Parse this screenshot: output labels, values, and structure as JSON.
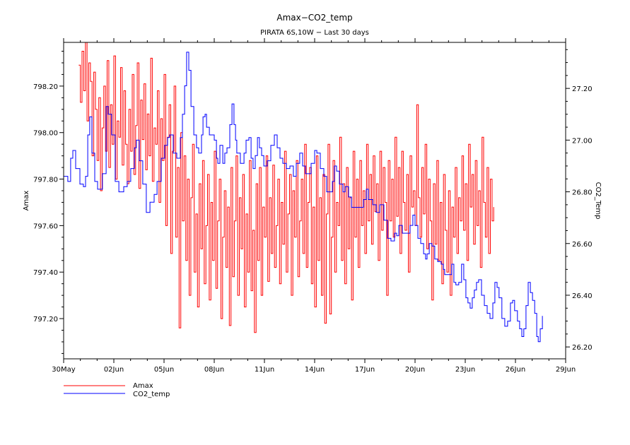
{
  "chart_data": {
    "type": "line",
    "title": "Amax−CO2_temp",
    "subtitle": "PIRATA 6S,10W − Last 30 days",
    "xlabel": "",
    "ylabel_left": "Amax",
    "ylabel_right": "CO2_Temp",
    "x_start_label": "30May",
    "xlim_days": [
      0,
      30
    ],
    "x_ticks": [
      {
        "day": 0,
        "label": "30May"
      },
      {
        "day": 3,
        "label": "02Jun"
      },
      {
        "day": 6,
        "label": "05Jun"
      },
      {
        "day": 9,
        "label": "08Jun"
      },
      {
        "day": 12,
        "label": "11Jun"
      },
      {
        "day": 15,
        "label": "14Jun"
      },
      {
        "day": 18,
        "label": "17Jun"
      },
      {
        "day": 21,
        "label": "20Jun"
      },
      {
        "day": 24,
        "label": "23Jun"
      },
      {
        "day": 27,
        "label": "26Jun"
      },
      {
        "day": 30,
        "label": "29Jun"
      }
    ],
    "ylim_left": [
      797.027,
      798.388
    ],
    "y_ticks_left": [
      {
        "value": 797.2,
        "label": "797.20"
      },
      {
        "value": 797.4,
        "label": "797.40"
      },
      {
        "value": 797.6,
        "label": "797.60"
      },
      {
        "value": 797.8,
        "label": "797.80"
      },
      {
        "value": 798.0,
        "label": "798.00"
      },
      {
        "value": 798.2,
        "label": "798.20"
      }
    ],
    "ylim_right": [
      26.154,
      27.378
    ],
    "y_ticks_right": [
      {
        "value": 26.2,
        "label": "26.20"
      },
      {
        "value": 26.4,
        "label": "26.40"
      },
      {
        "value": 26.6,
        "label": "26.60"
      },
      {
        "value": 26.8,
        "label": "26.80"
      },
      {
        "value": 27.0,
        "label": "27.00"
      },
      {
        "value": 27.2,
        "label": "27.20"
      }
    ],
    "grid": false,
    "legend_position": "bottom-left",
    "series": [
      {
        "name": "Amax",
        "axis": "left",
        "color": "#ff0000",
        "x_start_day": 0.9,
        "x_step_day": 0.1,
        "values": [
          798.29,
          798.13,
          798.35,
          798.18,
          798.39,
          798.05,
          798.3,
          798.22,
          797.9,
          798.26,
          798.1,
          797.88,
          798.15,
          797.75,
          798.02,
          798.2,
          797.92,
          798.31,
          797.85,
          798.12,
          797.95,
          798.33,
          797.8,
          798.05,
          797.98,
          798.28,
          797.86,
          798.18,
          797.95,
          797.78,
          798.1,
          797.92,
          798.25,
          797.82,
          798.03,
          798.3,
          797.76,
          798.14,
          797.97,
          798.21,
          797.84,
          798.08,
          797.9,
          798.32,
          797.79,
          798.02,
          797.95,
          798.18,
          797.7,
          798.06,
          797.88,
          798.25,
          797.6,
          797.98,
          798.12,
          797.48,
          797.92,
          798.2,
          797.55,
          797.85,
          797.16,
          798.0,
          797.62,
          797.9,
          797.45,
          797.8,
          797.3,
          797.72,
          797.95,
          797.4,
          797.65,
          797.25,
          797.78,
          797.5,
          797.88,
          797.35,
          797.6,
          797.82,
          797.28,
          797.7,
          797.45,
          797.92,
          797.33,
          797.62,
          797.8,
          797.2,
          797.55,
          797.75,
          797.42,
          797.68,
          797.17,
          797.85,
          797.38,
          797.62,
          797.9,
          797.3,
          797.72,
          797.5,
          797.82,
          797.25,
          797.65,
          797.4,
          797.88,
          797.32,
          797.58,
          797.14,
          797.78,
          797.45,
          797.85,
          797.3,
          797.68,
          797.55,
          797.9,
          797.36,
          797.72,
          797.48,
          797.86,
          797.42,
          797.6,
          797.8,
          797.35,
          797.7,
          797.52,
          797.92,
          797.4,
          797.65,
          797.82,
          797.3,
          797.75,
          797.55,
          797.88,
          797.38,
          797.62,
          797.8,
          797.48,
          797.95,
          797.42,
          797.7,
          797.85,
          797.35,
          797.68,
          797.25,
          797.9,
          797.45,
          797.72,
          797.3,
          797.82,
          797.18,
          797.65,
          797.95,
          797.22,
          797.55,
          797.88,
          797.4,
          797.7,
          797.6,
          797.98,
          797.45,
          797.78,
          797.35,
          797.85,
          797.5,
          797.72,
          797.28,
          797.92,
          797.55,
          797.8,
          797.42,
          797.88,
          797.6,
          797.75,
          797.48,
          797.95,
          797.62,
          797.82,
          797.52,
          797.9,
          797.66,
          797.78,
          797.45,
          797.92,
          797.58,
          797.85,
          797.7,
          797.3,
          797.88,
          797.62,
          797.8,
          797.55,
          797.98,
          797.64,
          797.85,
          797.48,
          797.92,
          797.7,
          797.58,
          797.82,
          797.4,
          797.9,
          797.68,
          797.75,
          797.6,
          798.12,
          797.72,
          797.55,
          797.85,
          797.65,
          797.95,
          797.5,
          797.8,
          797.62,
          797.28,
          797.78,
          797.52,
          797.88,
          797.45,
          797.7,
          797.35,
          797.82,
          797.58,
          797.4,
          797.75,
          797.3,
          797.68,
          797.55,
          797.85,
          797.48,
          797.72,
          797.62,
          797.9,
          797.58,
          797.78,
          797.45,
          797.95,
          797.68,
          797.82,
          797.52,
          797.88,
          797.6,
          797.75,
          797.42,
          797.98,
          797.7,
          797.55,
          797.85,
          797.48,
          797.8,
          797.62,
          797.68
        ]
      },
      {
        "name": "CO2_temp",
        "axis": "right",
        "color": "#0000ff",
        "points": [
          [
            0.0,
            26.86
          ],
          [
            0.25,
            26.84
          ],
          [
            0.42,
            26.93
          ],
          [
            0.55,
            26.96
          ],
          [
            0.72,
            26.89
          ],
          [
            0.97,
            26.83
          ],
          [
            1.18,
            26.82
          ],
          [
            1.31,
            26.86
          ],
          [
            1.44,
            27.02
          ],
          [
            1.56,
            27.09
          ],
          [
            1.69,
            26.95
          ],
          [
            1.86,
            26.84
          ],
          [
            2.03,
            26.81
          ],
          [
            2.32,
            26.87
          ],
          [
            2.54,
            27.13
          ],
          [
            2.66,
            27.1
          ],
          [
            2.87,
            27.02
          ],
          [
            3.08,
            26.84
          ],
          [
            3.3,
            26.8
          ],
          [
            3.59,
            26.82
          ],
          [
            3.8,
            26.84
          ],
          [
            4.01,
            26.89
          ],
          [
            4.23,
            26.97
          ],
          [
            4.35,
            27.0
          ],
          [
            4.52,
            26.92
          ],
          [
            4.73,
            26.83
          ],
          [
            4.94,
            26.72
          ],
          [
            5.16,
            26.76
          ],
          [
            5.41,
            26.79
          ],
          [
            5.58,
            26.84
          ],
          [
            5.83,
            26.93
          ],
          [
            6.04,
            26.98
          ],
          [
            6.21,
            27.01
          ],
          [
            6.34,
            27.02
          ],
          [
            6.55,
            26.95
          ],
          [
            6.76,
            26.93
          ],
          [
            6.97,
            27.01
          ],
          [
            7.1,
            27.1
          ],
          [
            7.23,
            27.21
          ],
          [
            7.35,
            27.34
          ],
          [
            7.48,
            27.27
          ],
          [
            7.61,
            27.13
          ],
          [
            7.78,
            27.02
          ],
          [
            7.94,
            26.97
          ],
          [
            8.07,
            26.95
          ],
          [
            8.24,
            27.02
          ],
          [
            8.33,
            27.09
          ],
          [
            8.45,
            27.1
          ],
          [
            8.54,
            27.05
          ],
          [
            8.71,
            27.02
          ],
          [
            8.87,
            27.02
          ],
          [
            9.0,
            27.0
          ],
          [
            9.13,
            26.93
          ],
          [
            9.21,
            26.91
          ],
          [
            9.34,
            26.98
          ],
          [
            9.51,
            26.91
          ],
          [
            9.63,
            26.95
          ],
          [
            9.76,
            26.97
          ],
          [
            9.93,
            27.06
          ],
          [
            10.06,
            27.14
          ],
          [
            10.18,
            27.06
          ],
          [
            10.27,
            27.0
          ],
          [
            10.35,
            26.95
          ],
          [
            10.56,
            26.91
          ],
          [
            10.78,
            26.95
          ],
          [
            10.9,
            27.0
          ],
          [
            11.07,
            27.01
          ],
          [
            11.2,
            26.93
          ],
          [
            11.32,
            26.89
          ],
          [
            11.45,
            26.94
          ],
          [
            11.58,
            27.01
          ],
          [
            11.7,
            26.97
          ],
          [
            11.83,
            26.94
          ],
          [
            11.96,
            26.9
          ],
          [
            12.17,
            26.92
          ],
          [
            12.38,
            26.98
          ],
          [
            12.59,
            27.02
          ],
          [
            12.76,
            26.97
          ],
          [
            12.93,
            26.93
          ],
          [
            13.1,
            26.91
          ],
          [
            13.31,
            26.89
          ],
          [
            13.52,
            26.9
          ],
          [
            13.73,
            26.86
          ],
          [
            13.9,
            26.91
          ],
          [
            14.11,
            26.95
          ],
          [
            14.28,
            26.9
          ],
          [
            14.45,
            26.87
          ],
          [
            14.62,
            26.87
          ],
          [
            14.79,
            26.91
          ],
          [
            15.0,
            26.96
          ],
          [
            15.13,
            26.95
          ],
          [
            15.34,
            26.89
          ],
          [
            15.55,
            26.86
          ],
          [
            15.72,
            26.8
          ],
          [
            15.89,
            26.8
          ],
          [
            16.06,
            26.84
          ],
          [
            16.18,
            26.9
          ],
          [
            16.31,
            26.88
          ],
          [
            16.48,
            26.83
          ],
          [
            16.69,
            26.8
          ],
          [
            16.82,
            26.82
          ],
          [
            17.03,
            26.78
          ],
          [
            17.2,
            26.74
          ],
          [
            17.45,
            26.74
          ],
          [
            17.66,
            26.74
          ],
          [
            17.92,
            26.77
          ],
          [
            18.09,
            26.81
          ],
          [
            18.21,
            26.77
          ],
          [
            18.47,
            26.75
          ],
          [
            18.68,
            26.72
          ],
          [
            18.89,
            26.75
          ],
          [
            19.14,
            26.69
          ],
          [
            19.35,
            26.62
          ],
          [
            19.56,
            26.61
          ],
          [
            19.77,
            26.64
          ],
          [
            19.9,
            26.63
          ],
          [
            20.03,
            26.67
          ],
          [
            20.24,
            26.64
          ],
          [
            20.49,
            26.64
          ],
          [
            20.7,
            26.67
          ],
          [
            20.87,
            26.71
          ],
          [
            21.0,
            26.67
          ],
          [
            21.17,
            26.62
          ],
          [
            21.34,
            26.6
          ],
          [
            21.51,
            26.56
          ],
          [
            21.63,
            26.54
          ],
          [
            21.72,
            26.56
          ],
          [
            21.85,
            26.6
          ],
          [
            22.01,
            26.59
          ],
          [
            22.18,
            26.54
          ],
          [
            22.35,
            26.53
          ],
          [
            22.56,
            26.52
          ],
          [
            22.69,
            26.5
          ],
          [
            22.77,
            26.48
          ],
          [
            23.02,
            26.48
          ],
          [
            23.19,
            26.52
          ],
          [
            23.32,
            26.45
          ],
          [
            23.44,
            26.44
          ],
          [
            23.61,
            26.45
          ],
          [
            23.78,
            26.52
          ],
          [
            23.91,
            26.46
          ],
          [
            24.04,
            26.39
          ],
          [
            24.16,
            26.37
          ],
          [
            24.29,
            26.35
          ],
          [
            24.42,
            26.39
          ],
          [
            24.54,
            26.42
          ],
          [
            24.67,
            26.45
          ],
          [
            24.8,
            26.46
          ],
          [
            24.97,
            26.4
          ],
          [
            25.14,
            26.36
          ],
          [
            25.31,
            26.33
          ],
          [
            25.48,
            26.31
          ],
          [
            25.65,
            26.37
          ],
          [
            25.77,
            26.45
          ],
          [
            25.9,
            26.43
          ],
          [
            26.02,
            26.39
          ],
          [
            26.19,
            26.31
          ],
          [
            26.36,
            26.28
          ],
          [
            26.53,
            26.3
          ],
          [
            26.7,
            26.37
          ],
          [
            26.83,
            26.38
          ],
          [
            26.95,
            26.34
          ],
          [
            27.12,
            26.3
          ],
          [
            27.25,
            26.27
          ],
          [
            27.38,
            26.24
          ],
          [
            27.5,
            26.27
          ],
          [
            27.63,
            26.36
          ],
          [
            27.76,
            26.45
          ],
          [
            27.89,
            26.41
          ],
          [
            28.02,
            26.38
          ],
          [
            28.15,
            26.33
          ],
          [
            28.27,
            26.24
          ],
          [
            28.36,
            26.22
          ],
          [
            28.48,
            26.27
          ],
          [
            28.61,
            26.32
          ]
        ]
      }
    ],
    "legend": [
      {
        "label": "Amax",
        "color": "#ff0000"
      },
      {
        "label": "CO2_temp",
        "color": "#0000ff"
      }
    ]
  }
}
